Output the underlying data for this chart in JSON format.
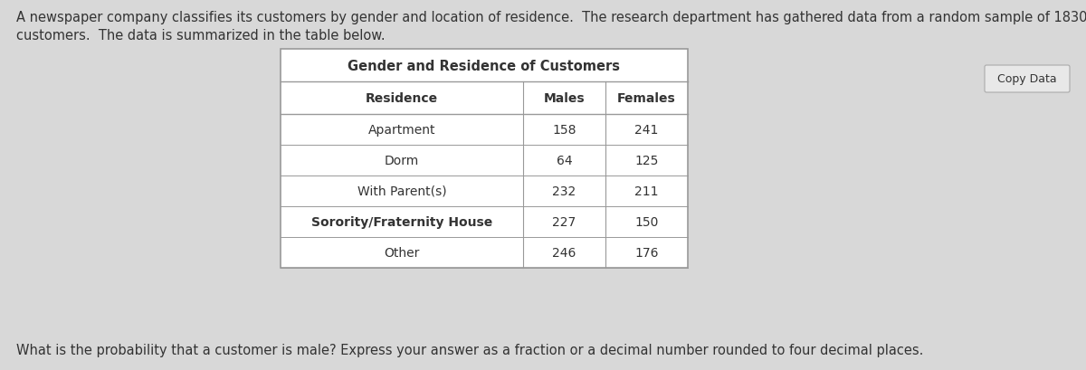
{
  "intro_text_line1": "A newspaper company classifies its customers by gender and location of residence.  The research department has gathered data from a random sample of 1830",
  "intro_text_line2": "customers.  The data is summarized in the table below.",
  "table_title": "Gender and Residence of Customers",
  "col_headers": [
    "Residence",
    "Males",
    "Females"
  ],
  "rows": [
    [
      "Apartment",
      "158",
      "241"
    ],
    [
      "Dorm",
      "64",
      "125"
    ],
    [
      "With Parent(s)",
      "232",
      "211"
    ],
    [
      "Sorority/Fraternity House",
      "227",
      "150"
    ],
    [
      "Other",
      "246",
      "176"
    ]
  ],
  "bottom_text": "What is the probability that a customer is male? Express your answer as a fraction or a decimal number rounded to four decimal places.",
  "copy_button_text": "Copy Data",
  "bg_color": "#d8d8d8",
  "table_bg": "#ffffff",
  "table_border_color": "#999999",
  "text_color": "#333333",
  "title_fontsize": 10.0,
  "body_fontsize": 10.0,
  "intro_fontsize": 10.5
}
